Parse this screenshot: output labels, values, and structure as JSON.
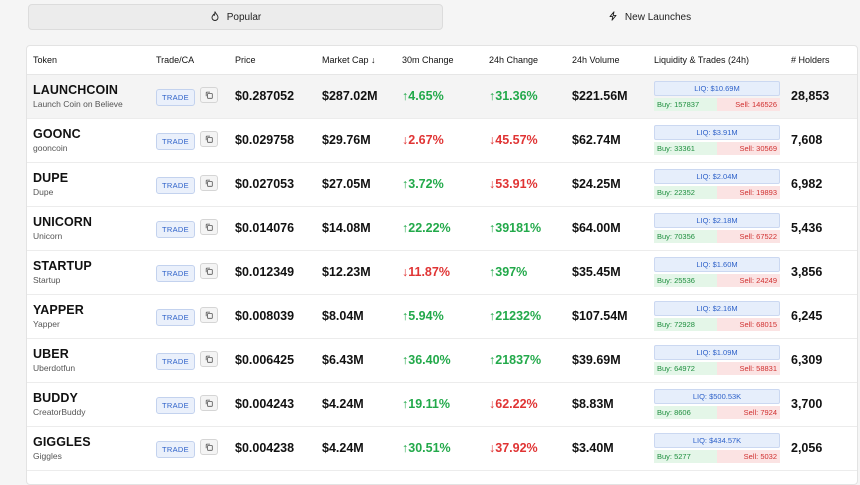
{
  "tabs": [
    {
      "label": "Popular",
      "icon": "flame-icon",
      "active": true
    },
    {
      "label": "New Launches",
      "icon": "lightning-icon",
      "active": false
    }
  ],
  "table": {
    "headers": {
      "token": "Token",
      "trade": "Trade/CA",
      "price": "Price",
      "mcap": "Market Cap ↓",
      "ch30": "30m Change",
      "ch24": "24h Change",
      "vol": "24h Volume",
      "liq": "Liquidity & Trades (24h)",
      "holders": "# Holders"
    },
    "trade_label": "TRADE",
    "rows": [
      {
        "name": "LAUNCHCOIN",
        "sub": "Launch Coin on Believe",
        "price": "$0.287052",
        "mcap": "$287.02M",
        "ch30": "↑4.65%",
        "ch30_dir": "up",
        "ch24": "↑31.36%",
        "ch24_dir": "up",
        "vol": "$221.56M",
        "liq": "LIQ: $10.69M",
        "buy": "Buy: 157837",
        "sell": "Sell: 146526",
        "holders": "28,853"
      },
      {
        "name": "GOONC",
        "sub": "gooncoin",
        "price": "$0.029758",
        "mcap": "$29.76M",
        "ch30": "↓2.67%",
        "ch30_dir": "down",
        "ch24": "↓45.57%",
        "ch24_dir": "down",
        "vol": "$62.74M",
        "liq": "LIQ: $3.91M",
        "buy": "Buy: 33361",
        "sell": "Sell: 30569",
        "holders": "7,608"
      },
      {
        "name": "DUPE",
        "sub": "Dupe",
        "price": "$0.027053",
        "mcap": "$27.05M",
        "ch30": "↑3.72%",
        "ch30_dir": "up",
        "ch24": "↓53.91%",
        "ch24_dir": "down",
        "vol": "$24.25M",
        "liq": "LIQ: $2.04M",
        "buy": "Buy: 22352",
        "sell": "Sell: 19893",
        "holders": "6,982"
      },
      {
        "name": "UNICORN",
        "sub": "Unicorn",
        "price": "$0.014076",
        "mcap": "$14.08M",
        "ch30": "↑22.22%",
        "ch30_dir": "up",
        "ch24": "↑39181%",
        "ch24_dir": "up",
        "vol": "$64.00M",
        "liq": "LIQ: $2.18M",
        "buy": "Buy: 70356",
        "sell": "Sell: 67522",
        "holders": "5,436"
      },
      {
        "name": "STARTUP",
        "sub": "Startup",
        "price": "$0.012349",
        "mcap": "$12.23M",
        "ch30": "↓11.87%",
        "ch30_dir": "down",
        "ch24": "↑397%",
        "ch24_dir": "up",
        "vol": "$35.45M",
        "liq": "LIQ: $1.60M",
        "buy": "Buy: 25536",
        "sell": "Sell: 24249",
        "holders": "3,856"
      },
      {
        "name": "YAPPER",
        "sub": "Yapper",
        "price": "$0.008039",
        "mcap": "$8.04M",
        "ch30": "↑5.94%",
        "ch30_dir": "up",
        "ch24": "↑21232%",
        "ch24_dir": "up",
        "vol": "$107.54M",
        "liq": "LIQ: $2.16M",
        "buy": "Buy: 72928",
        "sell": "Sell: 68015",
        "holders": "6,245"
      },
      {
        "name": "UBER",
        "sub": "Uberdotfun",
        "price": "$0.006425",
        "mcap": "$6.43M",
        "ch30": "↑36.40%",
        "ch30_dir": "up",
        "ch24": "↑21837%",
        "ch24_dir": "up",
        "vol": "$39.69M",
        "liq": "LIQ: $1.09M",
        "buy": "Buy: 64972",
        "sell": "Sell: 58831",
        "holders": "6,309"
      },
      {
        "name": "BUDDY",
        "sub": "CreatorBuddy",
        "price": "$0.004243",
        "mcap": "$4.24M",
        "ch30": "↑19.11%",
        "ch30_dir": "up",
        "ch24": "↓62.22%",
        "ch24_dir": "down",
        "vol": "$8.83M",
        "liq": "LIQ: $500.53K",
        "buy": "Buy: 8606",
        "sell": "Sell: 7924",
        "holders": "3,700"
      },
      {
        "name": "GIGGLES",
        "sub": "Giggles",
        "price": "$0.004238",
        "mcap": "$4.24M",
        "ch30": "↑30.51%",
        "ch30_dir": "up",
        "ch24": "↓37.92%",
        "ch24_dir": "down",
        "vol": "$3.40M",
        "liq": "LIQ: $434.57K",
        "buy": "Buy: 5277",
        "sell": "Sell: 5032",
        "holders": "2,056"
      }
    ]
  },
  "colors": {
    "up": "#22a94a",
    "down": "#e03434",
    "accent": "#2f62c9"
  }
}
